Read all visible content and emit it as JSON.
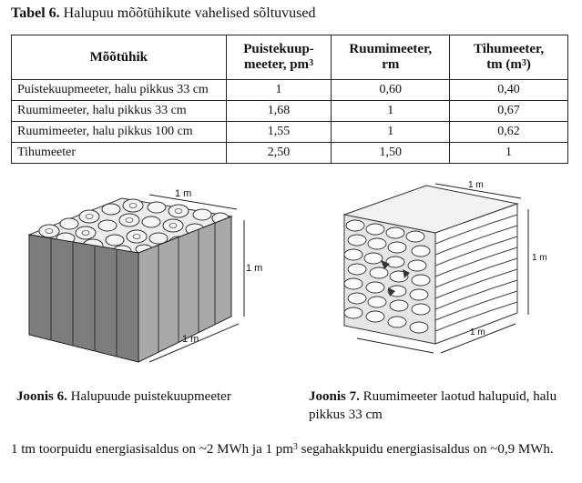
{
  "table": {
    "label": "Tabel 6.",
    "title": " Halupuu mõõtühikute vahelised sõltuvused",
    "headers": {
      "h1": "Mõõtühik",
      "h2_line1": "Puistekuup-",
      "h2_line2": "meeter, pm",
      "h2_sup": "3",
      "h3_line1": "Ruumimeeter,",
      "h3_line2": "rm",
      "h4_line1": "Tihumeeter,",
      "h4_line2_pre": "tm (m",
      "h4_sup": "3",
      "h4_line2_post": ")"
    },
    "rows": [
      [
        "Puistekuupmeeter, halu pikkus 33 cm",
        "1",
        "0,60",
        "0,40"
      ],
      [
        "Ruumimeeter, halu pikkus 33 cm",
        "1,68",
        "1",
        "0,67"
      ],
      [
        "Ruumimeeter, halu pikkus 100 cm",
        "1,55",
        "1",
        "0,62"
      ],
      [
        "Tihumeeter",
        "2,50",
        "1,50",
        "1"
      ]
    ]
  },
  "figure6": {
    "dim_top": "1 m",
    "dim_right": "1 m",
    "dim_bottom": "1 m",
    "label": "Joonis 6.",
    "caption": " Halupuude puistekuupmeeter"
  },
  "figure7": {
    "dim_top": "1 m",
    "dim_right": "1 m",
    "dim_bottom": "1 m",
    "label": "Joonis 7.",
    "caption": " Ruumimeeter laotud halupuid, halu pikkus 33 cm"
  },
  "note": {
    "part1": "1 tm toorpuidu energiasisaldus on ~2 MWh ja 1 pm",
    "sup": "3",
    "part2": " segahakkpuidu energiasisaldus on ~0,9 MWh."
  }
}
